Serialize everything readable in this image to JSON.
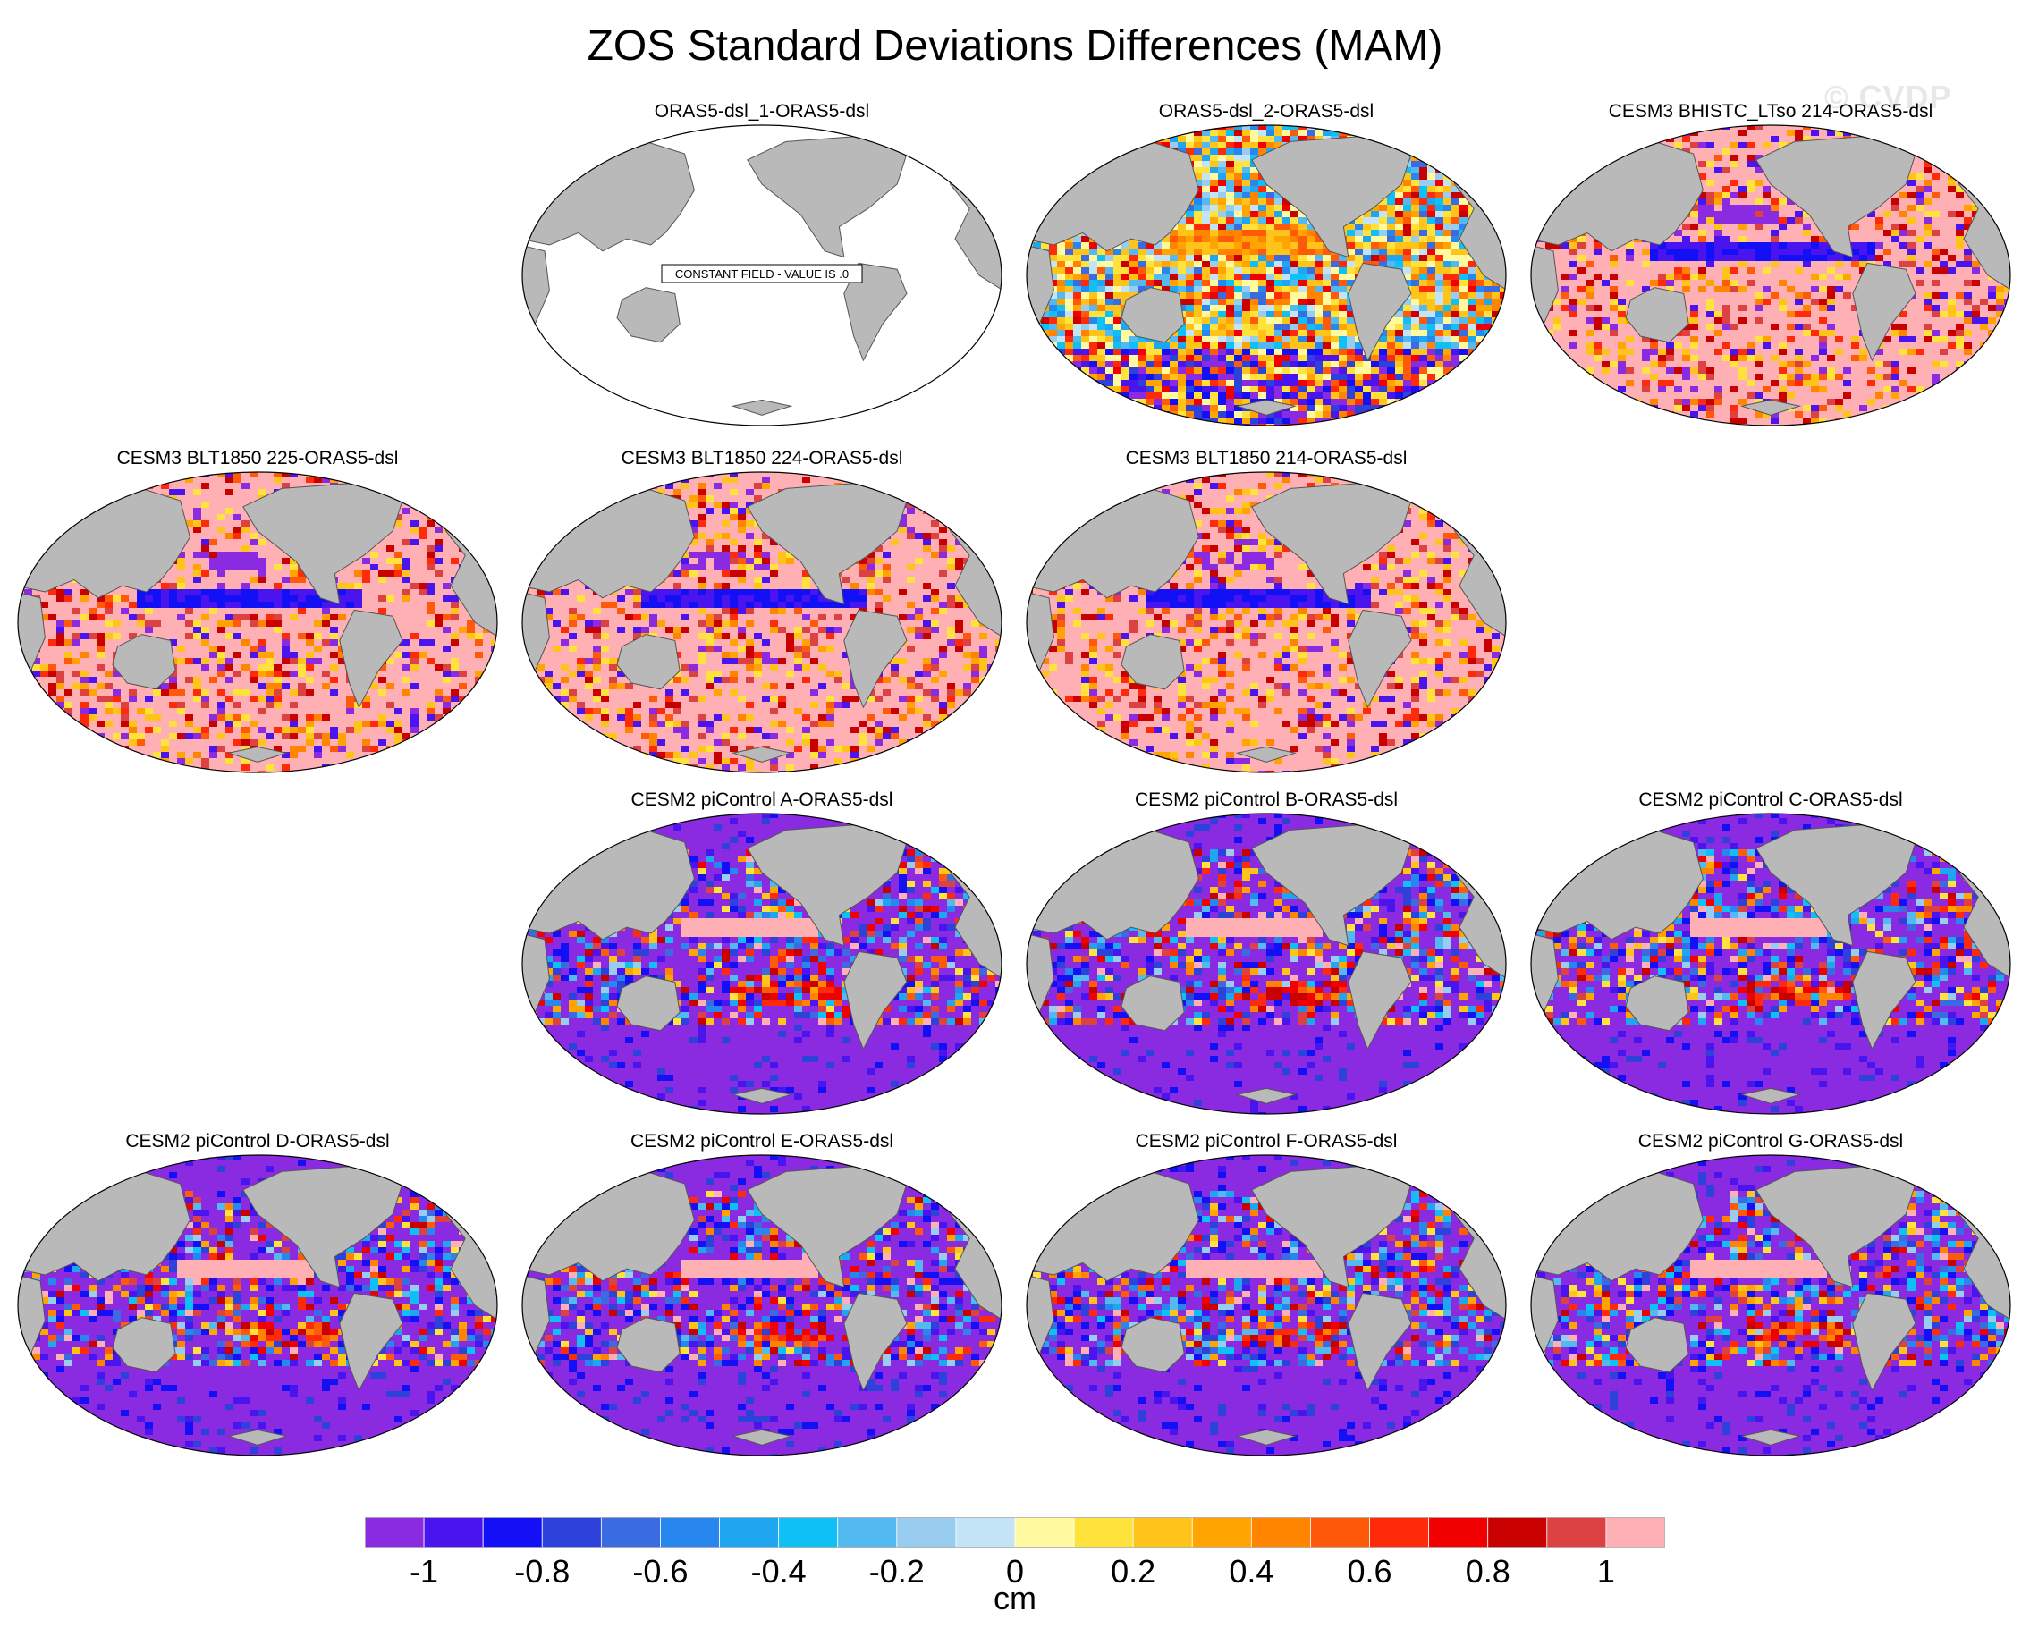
{
  "figure": {
    "title": "ZOS Standard Deviations Differences (MAM)",
    "watermark": "© CVDP",
    "units": "cm"
  },
  "colors": {
    "land": "#b9b9b9",
    "coast": "#555555",
    "palette": [
      "#8a2be2",
      "#4a14ee",
      "#1410f5",
      "#2c42db",
      "#3a6be0",
      "#2787ee",
      "#1ea6f0",
      "#0fc0f6",
      "#52baf0",
      "#98cdf0",
      "#c3e4f6",
      "#fffaa0",
      "#ffe23c",
      "#ffc41a",
      "#ffa400",
      "#ff8400",
      "#ff5a0a",
      "#ff2a0a",
      "#f00000",
      "#c80000",
      "#dc4242",
      "#ffb0b4"
    ]
  },
  "colorbar": {
    "labels": [
      "-1",
      "-0.8",
      "-0.6",
      "-0.4",
      "-0.2",
      "0",
      "0.2",
      "0.4",
      "0.6",
      "0.8",
      "1"
    ]
  },
  "panels": [
    {
      "title": "ORAS5-dsl_1-ORAS5-dsl",
      "row": 0,
      "col": 1,
      "pattern": "constant",
      "note": "CONSTANT FIELD - VALUE IS .0"
    },
    {
      "title": "ORAS5-dsl_2-ORAS5-dsl",
      "row": 0,
      "col": 2,
      "pattern": "mixed"
    },
    {
      "title": "CESM3 BHISTC_LTso 214-ORAS5-dsl",
      "row": 0,
      "col": 3,
      "pattern": "positive"
    },
    {
      "title": "CESM3 BLT1850 225-ORAS5-dsl",
      "row": 1,
      "col": 0,
      "pattern": "positive"
    },
    {
      "title": "CESM3 BLT1850 224-ORAS5-dsl",
      "row": 1,
      "col": 1,
      "pattern": "positive"
    },
    {
      "title": "CESM3 BLT1850 214-ORAS5-dsl",
      "row": 1,
      "col": 2,
      "pattern": "positive"
    },
    {
      "title": "CESM2 piControl A-ORAS5-dsl",
      "row": 2,
      "col": 1,
      "pattern": "negative"
    },
    {
      "title": "CESM2 piControl B-ORAS5-dsl",
      "row": 2,
      "col": 2,
      "pattern": "negative"
    },
    {
      "title": "CESM2 piControl C-ORAS5-dsl",
      "row": 2,
      "col": 3,
      "pattern": "negative"
    },
    {
      "title": "CESM2 piControl D-ORAS5-dsl",
      "row": 3,
      "col": 0,
      "pattern": "negative"
    },
    {
      "title": "CESM2 piControl E-ORAS5-dsl",
      "row": 3,
      "col": 1,
      "pattern": "negative"
    },
    {
      "title": "CESM2 piControl F-ORAS5-dsl",
      "row": 3,
      "col": 2,
      "pattern": "negative"
    },
    {
      "title": "CESM2 piControl G-ORAS5-dsl",
      "row": 3,
      "col": 3,
      "pattern": "negative"
    }
  ]
}
